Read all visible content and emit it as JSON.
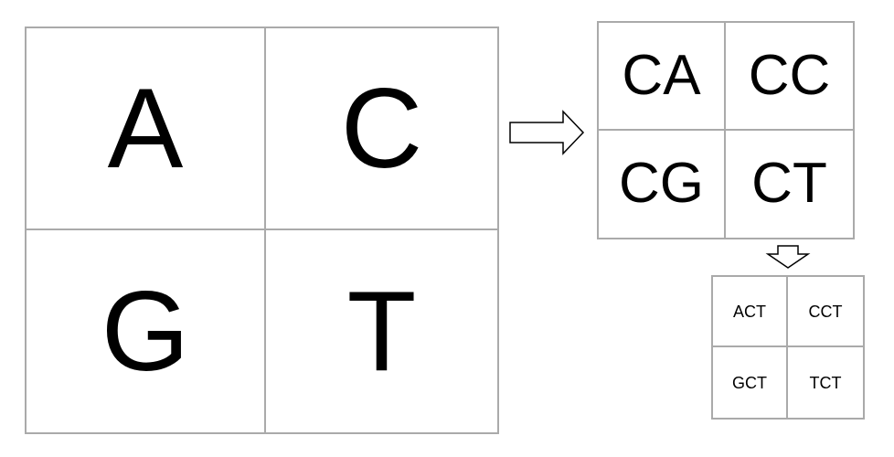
{
  "grids": {
    "large": {
      "cells": [
        "A",
        "C",
        "G",
        "T"
      ]
    },
    "medium": {
      "cells": [
        "CA",
        "CC",
        "CG",
        "CT"
      ]
    },
    "small": {
      "cells": [
        "ACT",
        "CCT",
        "GCT",
        "TCT"
      ]
    }
  },
  "arrows": [
    {
      "direction": "right",
      "from": "large",
      "to": "medium"
    },
    {
      "direction": "down",
      "from": "medium",
      "to": "small"
    }
  ],
  "colors": {
    "grid_line": "#aaaaaa",
    "text": "#000000",
    "arrow_stroke": "#000000",
    "background": "#ffffff"
  }
}
